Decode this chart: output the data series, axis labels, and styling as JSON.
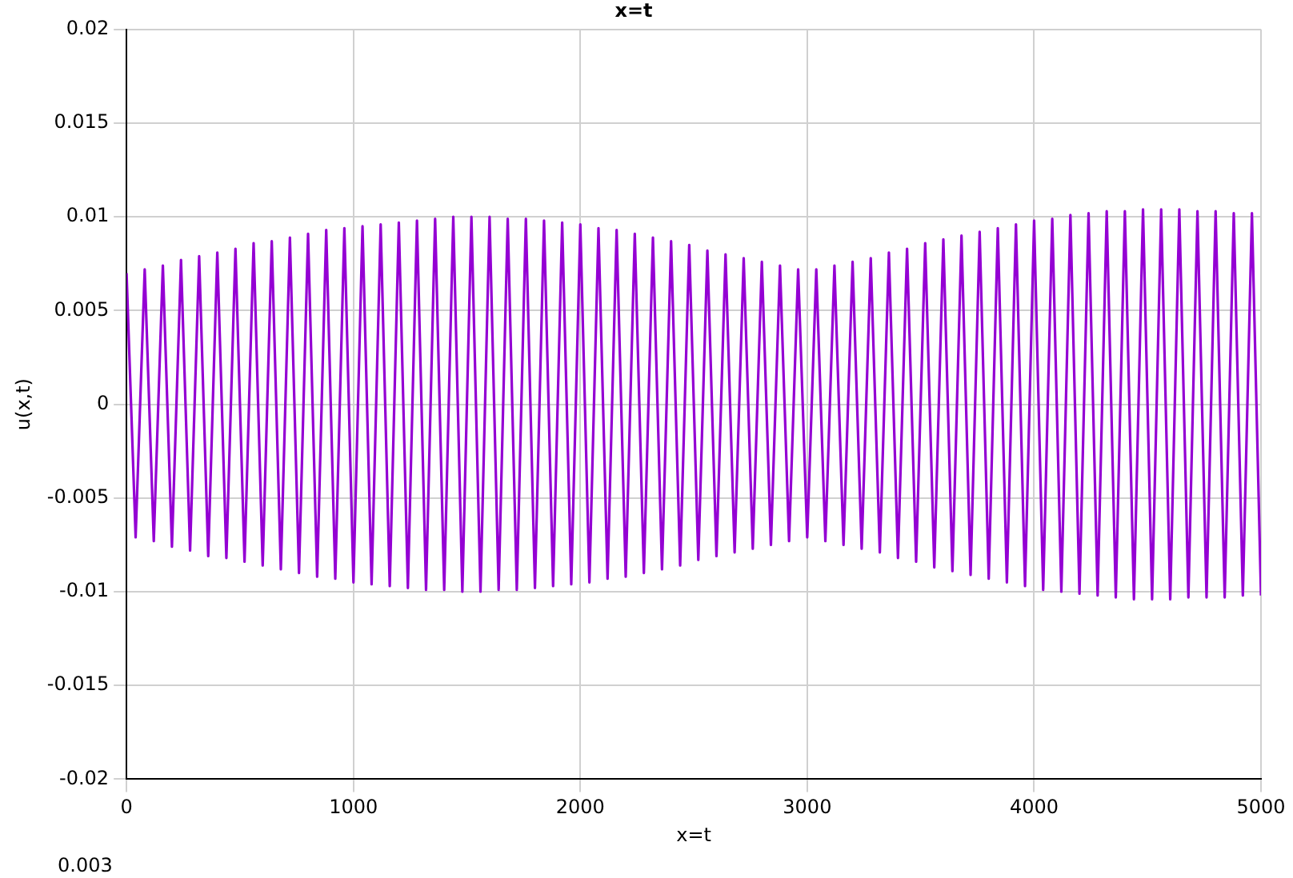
{
  "chart_data": {
    "type": "line",
    "title": "x=t",
    "xlabel": "x=t",
    "ylabel": "u(x,t)",
    "annotations": [
      "0.003"
    ],
    "x": [
      0,
      40,
      80,
      120,
      160,
      200,
      240,
      280,
      320,
      360,
      400,
      440,
      480,
      520,
      560,
      600,
      640,
      680,
      720,
      760,
      800,
      840,
      880,
      920,
      960,
      1000,
      1040,
      1080,
      1120,
      1160,
      1200,
      1240,
      1280,
      1320,
      1360,
      1400,
      1440,
      1480,
      1520,
      1560,
      1600,
      1640,
      1680,
      1720,
      1760,
      1800,
      1840,
      1880,
      1920,
      1960,
      2000,
      2040,
      2080,
      2120,
      2160,
      2200,
      2240,
      2280,
      2320,
      2360,
      2400,
      2440,
      2480,
      2520,
      2560,
      2600,
      2640,
      2680,
      2720,
      2760,
      2800,
      2840,
      2880,
      2920,
      2960,
      3000,
      3040,
      3080,
      3120,
      3160,
      3200,
      3240,
      3280,
      3320,
      3360,
      3400,
      3440,
      3480,
      3520,
      3560,
      3600,
      3640,
      3680,
      3720,
      3760,
      3800,
      3840,
      3880,
      3920,
      3960,
      4000,
      4040,
      4080,
      4120,
      4160,
      4200,
      4240,
      4280,
      4320,
      4360,
      4400,
      4440,
      4480,
      4520,
      4560,
      4600,
      4640,
      4680,
      4720,
      4760,
      4800,
      4840,
      4880,
      4920,
      4960,
      5000
    ],
    "series": [
      {
        "color": "#9400d3",
        "values": [
          0.007,
          -0.0071,
          0.0072,
          -0.0073,
          0.0074,
          -0.0076,
          0.0077,
          -0.0078,
          0.0079,
          -0.0081,
          0.0081,
          -0.0082,
          0.0083,
          -0.0084,
          0.0086,
          -0.0086,
          0.0087,
          -0.0088,
          0.0089,
          -0.009,
          0.0091,
          -0.0092,
          0.0093,
          -0.0093,
          0.0094,
          -0.0095,
          0.0095,
          -0.0096,
          0.0096,
          -0.0097,
          0.0097,
          -0.0098,
          0.0098,
          -0.0099,
          0.0099,
          -0.0099,
          0.01,
          -0.01,
          0.01,
          -0.01,
          0.01,
          -0.0099,
          0.0099,
          -0.0099,
          0.0099,
          -0.0098,
          0.0098,
          -0.0097,
          0.0097,
          -0.0096,
          0.0096,
          -0.0095,
          0.0094,
          -0.0093,
          0.0093,
          -0.0092,
          0.0091,
          -0.009,
          0.0089,
          -0.0088,
          0.0087,
          -0.0086,
          0.0085,
          -0.0083,
          0.0082,
          -0.0081,
          0.008,
          -0.0079,
          0.0078,
          -0.0077,
          0.0076,
          -0.0075,
          0.0074,
          -0.0073,
          0.0072,
          -0.0071,
          0.0072,
          -0.0073,
          0.0074,
          -0.0075,
          0.0076,
          -0.0077,
          0.0078,
          -0.0079,
          0.0081,
          -0.0082,
          0.0083,
          -0.0084,
          0.0086,
          -0.0087,
          0.0088,
          -0.0089,
          0.009,
          -0.0091,
          0.0092,
          -0.0093,
          0.0094,
          -0.0095,
          0.0096,
          -0.0097,
          0.0098,
          -0.0099,
          0.0099,
          -0.01,
          0.0101,
          -0.0101,
          0.0102,
          -0.0102,
          0.0103,
          -0.0103,
          0.0103,
          -0.0104,
          0.0104,
          -0.0104,
          0.0104,
          -0.0104,
          0.0104,
          -0.0103,
          0.0103,
          -0.0103,
          0.0103,
          -0.0103,
          0.0102,
          -0.0102,
          0.0102,
          -0.0102
        ]
      }
    ],
    "xlim": [
      0,
      5000
    ],
    "xticks": [
      0,
      1000,
      2000,
      3000,
      4000,
      5000
    ],
    "ylim": [
      -0.02,
      0.02
    ],
    "yticks": [
      -0.02,
      -0.015,
      -0.01,
      -0.005,
      0,
      0.005,
      0.01,
      0.015,
      0.02
    ],
    "grid": true,
    "legend": false,
    "marker": "none",
    "line_style": "solid"
  }
}
